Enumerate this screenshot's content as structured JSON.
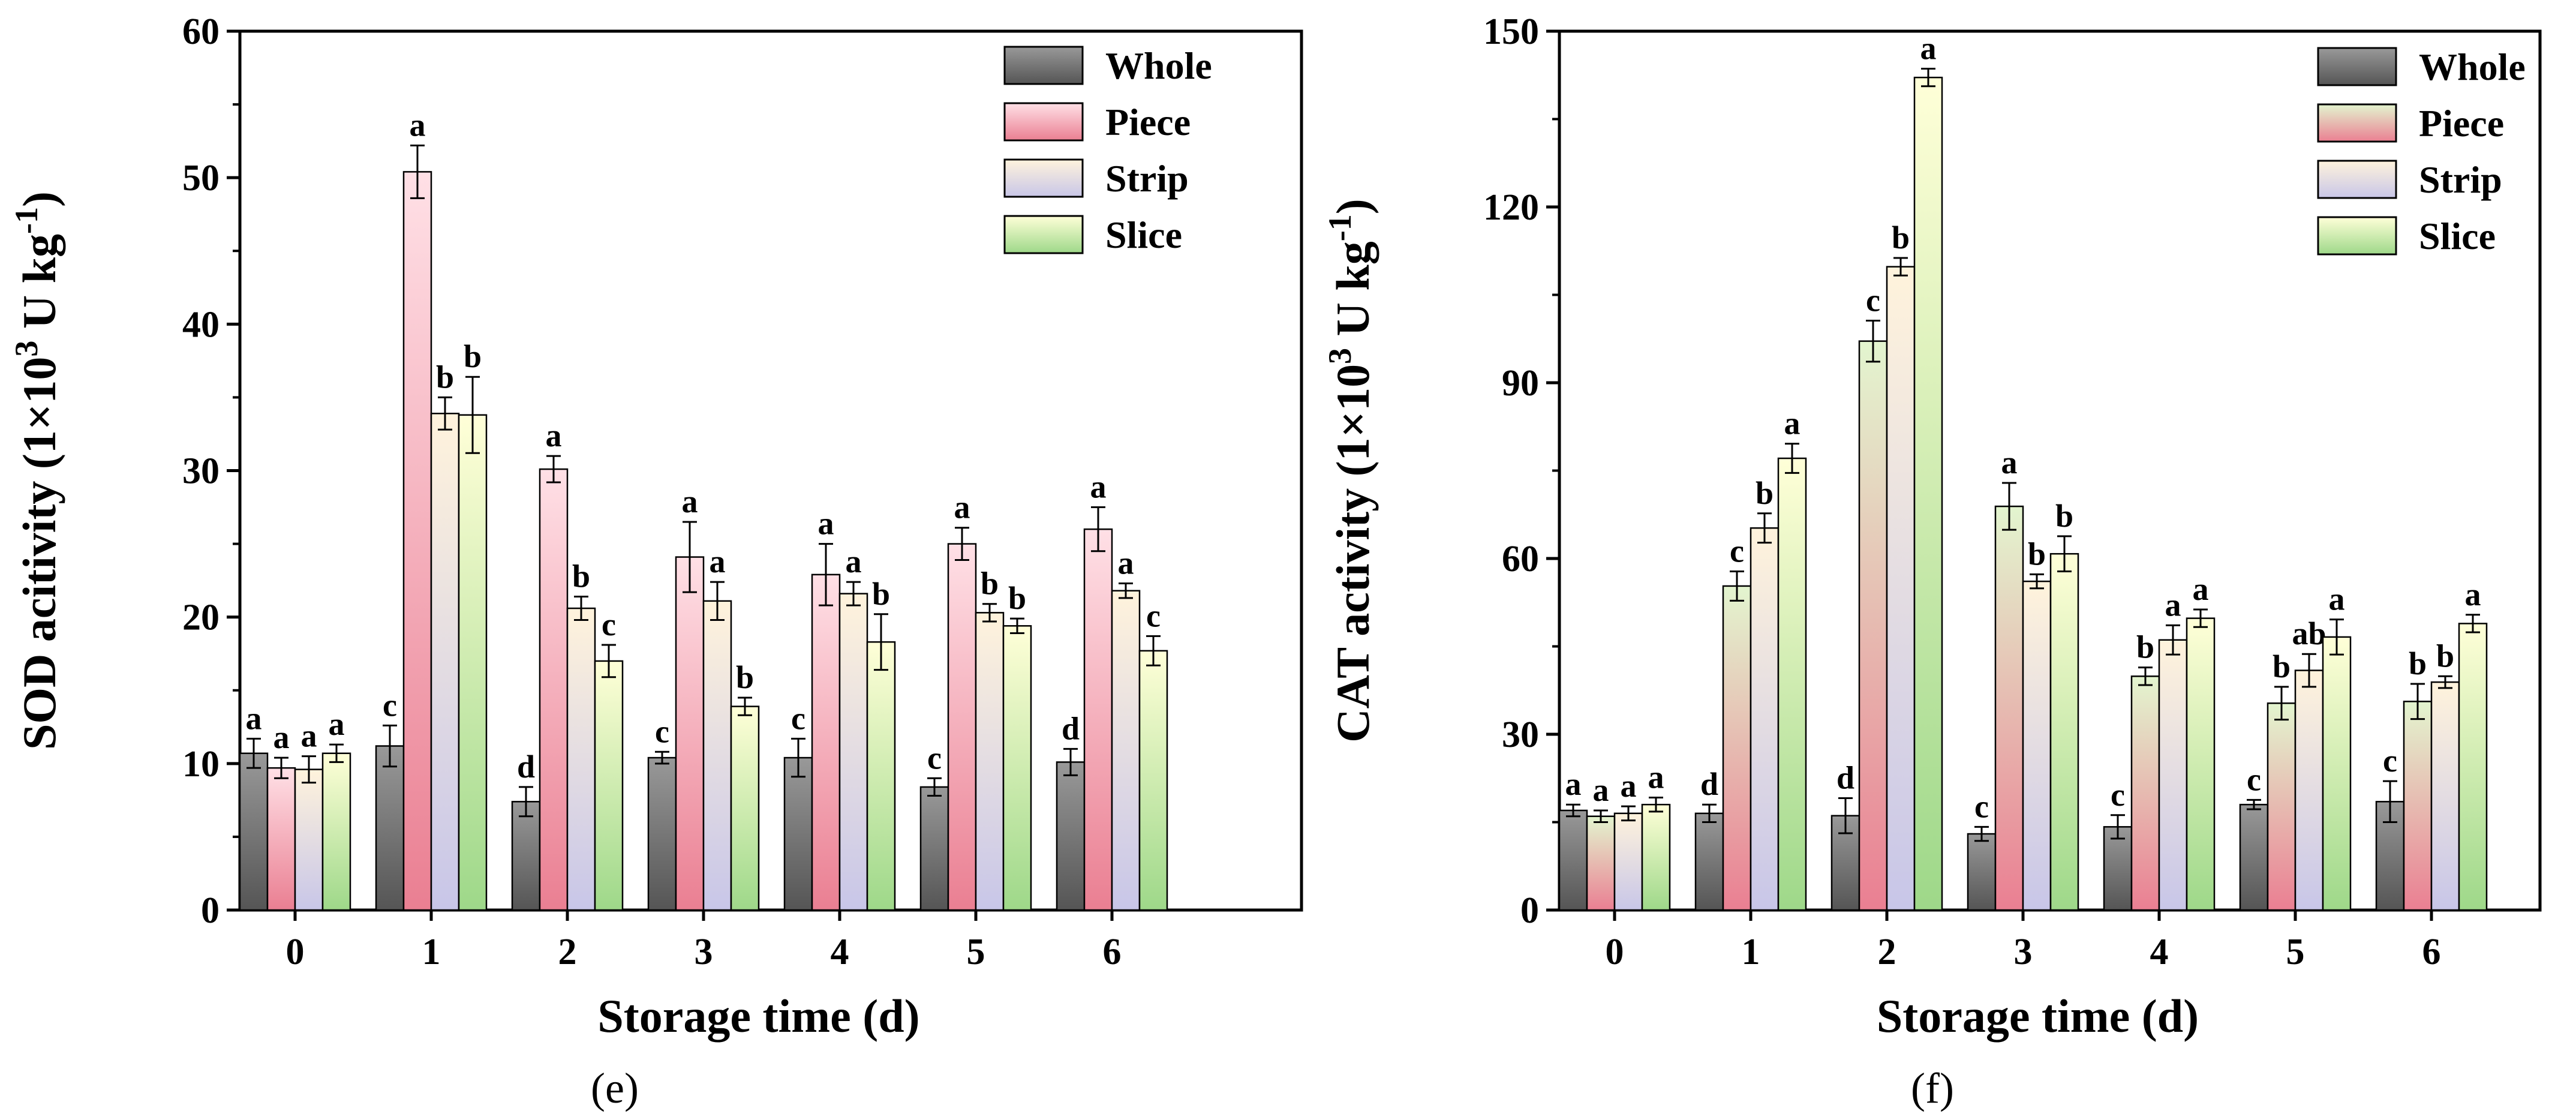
{
  "chart_data": [
    {
      "type": "bar",
      "panel_label": "(e)",
      "xlabel": "Storage time (d)",
      "ylabel_parts": {
        "main": "SOD acitivity (1×10",
        "sup1": "3",
        "mid": " U kg",
        "sup2": "-1",
        "end": ")"
      },
      "categories": [
        "0",
        "1",
        "2",
        "3",
        "4",
        "5",
        "6"
      ],
      "ylim": [
        0,
        60
      ],
      "yticks": [
        "0",
        "10",
        "20",
        "30",
        "40",
        "50",
        "60"
      ],
      "legend_position": "top-right",
      "series": [
        {
          "name": "Whole",
          "values": [
            10.7,
            11.2,
            7.4,
            10.4,
            10.4,
            8.4,
            10.1
          ],
          "errors": [
            1.0,
            1.4,
            1.0,
            0.4,
            1.3,
            0.6,
            0.9
          ],
          "labels": [
            "a",
            "c",
            "d",
            "c",
            "c",
            "c",
            "d"
          ]
        },
        {
          "name": "Piece",
          "values": [
            9.7,
            50.4,
            30.1,
            24.1,
            22.9,
            25.0,
            26.0
          ],
          "errors": [
            0.7,
            1.8,
            0.9,
            2.4,
            2.1,
            1.1,
            1.5
          ],
          "labels": [
            "a",
            "a",
            "a",
            "a",
            "a",
            "a",
            "a"
          ]
        },
        {
          "name": "Strip",
          "values": [
            9.6,
            33.9,
            20.6,
            21.1,
            21.6,
            20.3,
            21.8
          ],
          "errors": [
            0.9,
            1.1,
            0.8,
            1.3,
            0.8,
            0.6,
            0.5
          ],
          "labels": [
            "a",
            "b",
            "b",
            "a",
            "a",
            "b",
            "a"
          ]
        },
        {
          "name": "Slice",
          "values": [
            10.7,
            33.8,
            17.0,
            13.9,
            18.3,
            19.4,
            17.7
          ],
          "errors": [
            0.6,
            2.6,
            1.1,
            0.6,
            1.9,
            0.5,
            1.0
          ],
          "labels": [
            "a",
            "b",
            "c",
            "b",
            "b",
            "b",
            "c"
          ]
        }
      ]
    },
    {
      "type": "bar",
      "panel_label": "(f)",
      "xlabel": "Storage time (d)",
      "ylabel_parts": {
        "main": "CAT activity (1×10",
        "sup1": "3",
        "mid": " U kg",
        "sup2": "-1",
        "end": ")"
      },
      "categories": [
        "0",
        "1",
        "2",
        "3",
        "4",
        "5",
        "6"
      ],
      "ylim": [
        0,
        150
      ],
      "yticks": [
        "0",
        "30",
        "60",
        "90",
        "120",
        "150"
      ],
      "legend_position": "top-right",
      "series": [
        {
          "name": "Whole",
          "values": [
            17.0,
            16.5,
            16.1,
            13.0,
            14.2,
            18.0,
            18.5
          ],
          "errors": [
            1.0,
            1.5,
            3.0,
            1.2,
            2.0,
            0.8,
            3.5
          ],
          "labels": [
            "a",
            "d",
            "d",
            "c",
            "c",
            "c",
            "c"
          ]
        },
        {
          "name": "Piece",
          "values": [
            16.0,
            55.3,
            97.1,
            68.9,
            39.9,
            35.3,
            35.6
          ],
          "errors": [
            1.0,
            2.5,
            3.5,
            4.0,
            1.5,
            2.8,
            3.0
          ],
          "labels": [
            "a",
            "c",
            "c",
            "a",
            "b",
            "b",
            "b"
          ]
        },
        {
          "name": "Strip",
          "values": [
            16.5,
            65.2,
            109.8,
            56.1,
            46.1,
            40.9,
            38.9
          ],
          "errors": [
            1.2,
            2.5,
            1.5,
            1.2,
            2.5,
            2.8,
            1.0
          ],
          "labels": [
            "a",
            "b",
            "b",
            "b",
            "a",
            "ab",
            "b"
          ]
        },
        {
          "name": "Slice",
          "values": [
            18.0,
            77.1,
            142.1,
            60.8,
            49.8,
            46.6,
            48.9
          ],
          "errors": [
            1.2,
            2.5,
            1.5,
            3.0,
            1.5,
            3.0,
            1.5
          ],
          "labels": [
            "a",
            "a",
            "a",
            "b",
            "a",
            "a",
            "a"
          ]
        }
      ]
    }
  ],
  "colors": {
    "left": {
      "Whole": [
        "#999999",
        "#555555"
      ],
      "Piece": [
        "#ffe0e6",
        "#ea7f92"
      ],
      "Strip": [
        "#fff3dc",
        "#c8c6e8"
      ],
      "Slice": [
        "#ffffd8",
        "#9ed889"
      ]
    },
    "right": {
      "Whole": [
        "#999999",
        "#555555"
      ],
      "Piece": [
        "#e3f5cf",
        "#ea7f92"
      ],
      "Strip": [
        "#fff3dc",
        "#c8c6e8"
      ],
      "Slice": [
        "#ffffd8",
        "#9ed889"
      ]
    },
    "outline": "#000000"
  }
}
